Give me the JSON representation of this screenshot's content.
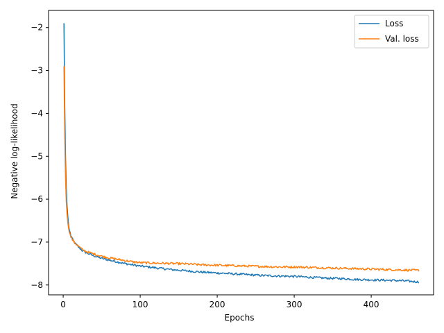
{
  "chart_data": {
    "type": "line",
    "title": "",
    "xlabel": "Epochs",
    "ylabel": "Negative log-likelihood",
    "xlim": [
      -19,
      481
    ],
    "ylim": [
      -8.23,
      -1.6
    ],
    "xticks": [
      0,
      100,
      200,
      300,
      400
    ],
    "xtick_labels": [
      "0",
      "100",
      "200",
      "300",
      "400"
    ],
    "yticks": [
      -2,
      -3,
      -4,
      -5,
      -6,
      -7,
      -8
    ],
    "ytick_labels": [
      "−2",
      "−3",
      "−4",
      "−5",
      "−6",
      "−7",
      "−8"
    ],
    "grid": false,
    "legend_position": "top-right",
    "series": [
      {
        "name": "Loss",
        "color": "#1f77b4",
        "x": [
          1,
          2,
          3,
          4,
          5,
          6,
          7,
          8,
          10,
          12,
          15,
          20,
          25,
          30,
          40,
          50,
          60,
          70,
          80,
          90,
          100,
          120,
          140,
          160,
          180,
          200,
          220,
          240,
          260,
          280,
          300,
          320,
          340,
          360,
          380,
          400,
          420,
          440,
          462
        ],
        "y": [
          -1.9,
          -3.8,
          -5.0,
          -5.75,
          -6.15,
          -6.4,
          -6.6,
          -6.72,
          -6.85,
          -6.93,
          -7.02,
          -7.12,
          -7.2,
          -7.25,
          -7.32,
          -7.38,
          -7.42,
          -7.46,
          -7.5,
          -7.53,
          -7.56,
          -7.6,
          -7.64,
          -7.67,
          -7.7,
          -7.72,
          -7.74,
          -7.76,
          -7.78,
          -7.79,
          -7.8,
          -7.82,
          -7.84,
          -7.85,
          -7.87,
          -7.88,
          -7.89,
          -7.9,
          -7.93
        ]
      },
      {
        "name": "Val. loss",
        "color": "#ff7f0e",
        "x": [
          1,
          2,
          3,
          4,
          5,
          6,
          7,
          8,
          10,
          12,
          15,
          20,
          25,
          30,
          40,
          50,
          60,
          70,
          80,
          90,
          100,
          120,
          140,
          160,
          180,
          200,
          220,
          240,
          260,
          280,
          300,
          320,
          340,
          360,
          380,
          400,
          420,
          440,
          462
        ],
        "y": [
          -2.9,
          -4.5,
          -5.5,
          -6.05,
          -6.35,
          -6.55,
          -6.68,
          -6.78,
          -6.88,
          -6.95,
          -7.02,
          -7.1,
          -7.18,
          -7.22,
          -7.28,
          -7.33,
          -7.37,
          -7.4,
          -7.43,
          -7.46,
          -7.48,
          -7.49,
          -7.5,
          -7.51,
          -7.53,
          -7.54,
          -7.55,
          -7.56,
          -7.57,
          -7.58,
          -7.58,
          -7.59,
          -7.6,
          -7.61,
          -7.62,
          -7.63,
          -7.64,
          -7.65,
          -7.66
        ]
      }
    ]
  }
}
